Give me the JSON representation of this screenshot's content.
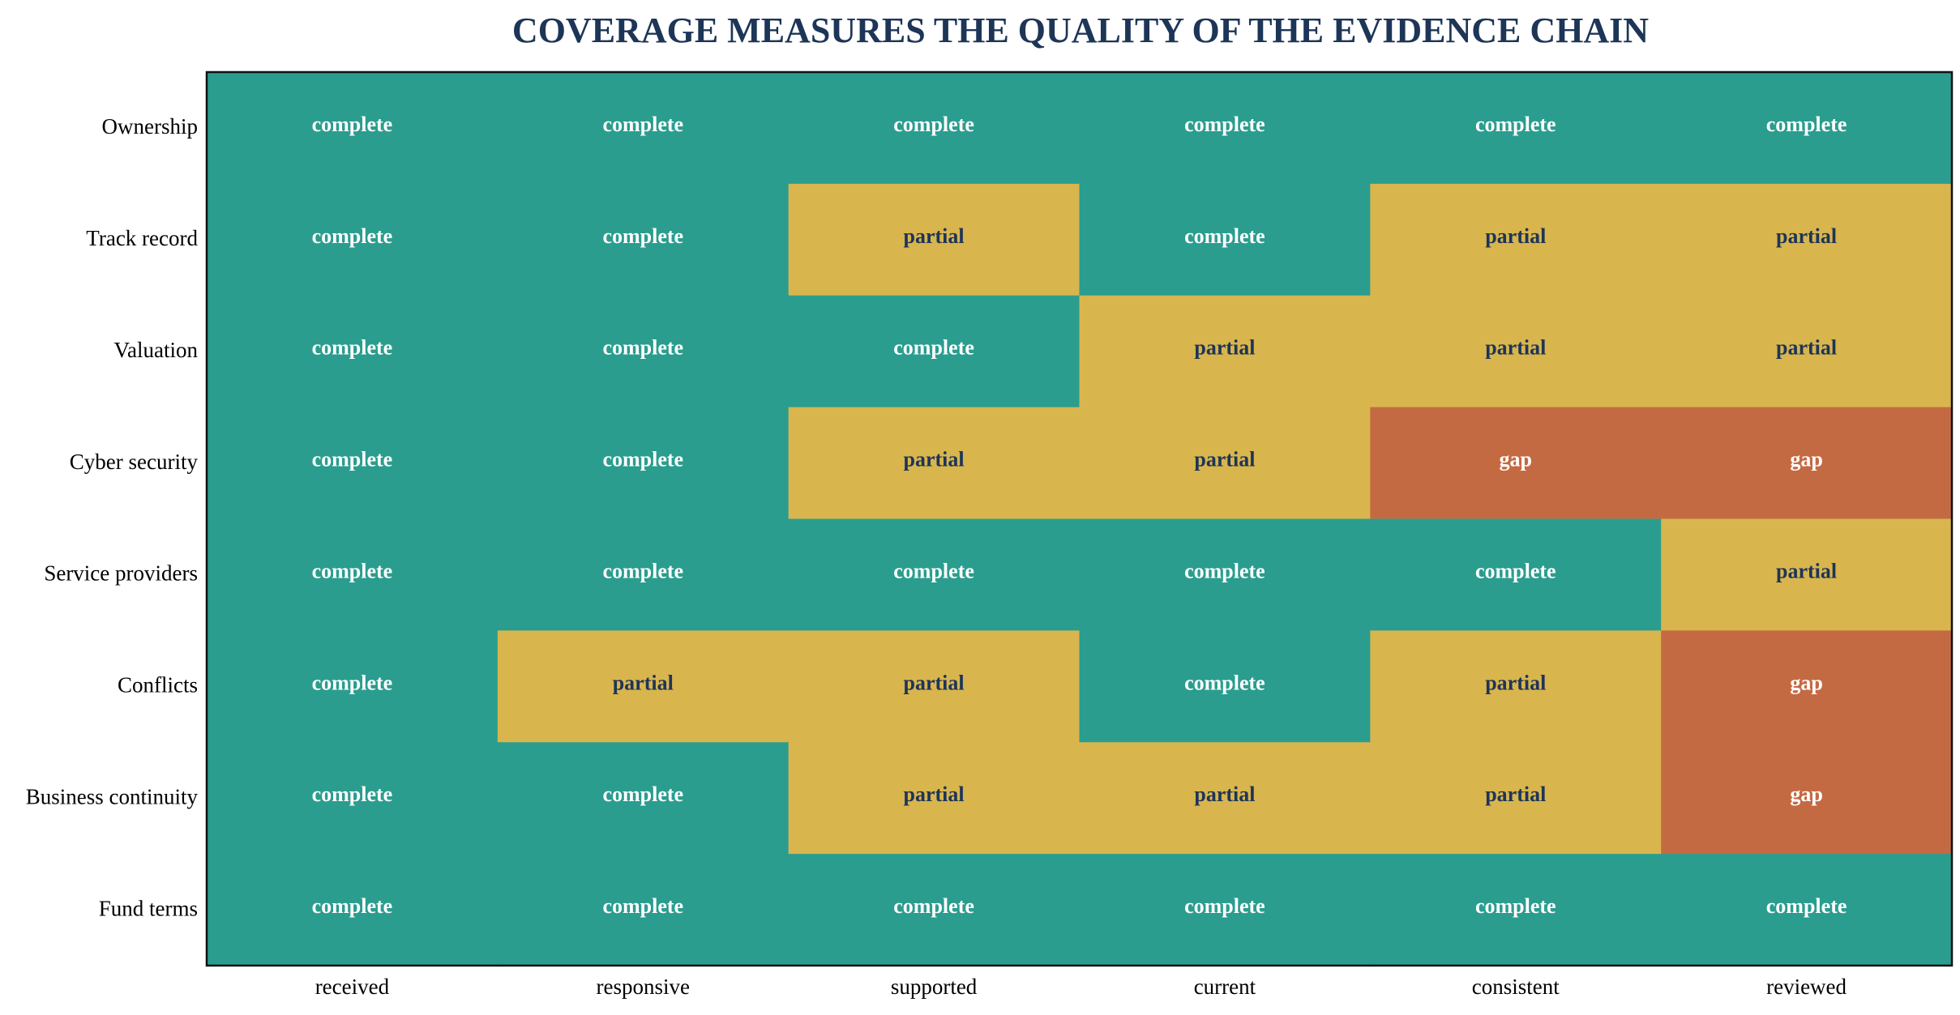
{
  "chart_data": {
    "type": "heatmap",
    "title": "COVERAGE MEASURES THE QUALITY OF THE EVIDENCE CHAIN",
    "xlabel": "",
    "ylabel": "",
    "columns": [
      "received",
      "responsive",
      "supported",
      "current",
      "consistent",
      "reviewed"
    ],
    "rows": [
      "Ownership",
      "Track record",
      "Valuation",
      "Cyber security",
      "Service providers",
      "Conflicts",
      "Business continuity",
      "Fund terms"
    ],
    "values": [
      [
        "complete",
        "complete",
        "complete",
        "complete",
        "complete",
        "complete"
      ],
      [
        "complete",
        "complete",
        "partial",
        "complete",
        "partial",
        "partial"
      ],
      [
        "complete",
        "complete",
        "complete",
        "partial",
        "partial",
        "partial"
      ],
      [
        "complete",
        "complete",
        "partial",
        "partial",
        "gap",
        "gap"
      ],
      [
        "complete",
        "complete",
        "complete",
        "complete",
        "complete",
        "partial"
      ],
      [
        "complete",
        "partial",
        "partial",
        "complete",
        "partial",
        "gap"
      ],
      [
        "complete",
        "complete",
        "partial",
        "partial",
        "partial",
        "gap"
      ],
      [
        "complete",
        "complete",
        "complete",
        "complete",
        "complete",
        "complete"
      ]
    ],
    "colors": {
      "complete": "#2a9d8f",
      "partial": "#d9b54e",
      "gap": "#c46a43"
    },
    "label_colors": {
      "complete": "#ffffff",
      "partial": "#1d3557",
      "gap": "#ffffff"
    },
    "title_color": "#1d3557",
    "grid": false,
    "legend": "none"
  }
}
